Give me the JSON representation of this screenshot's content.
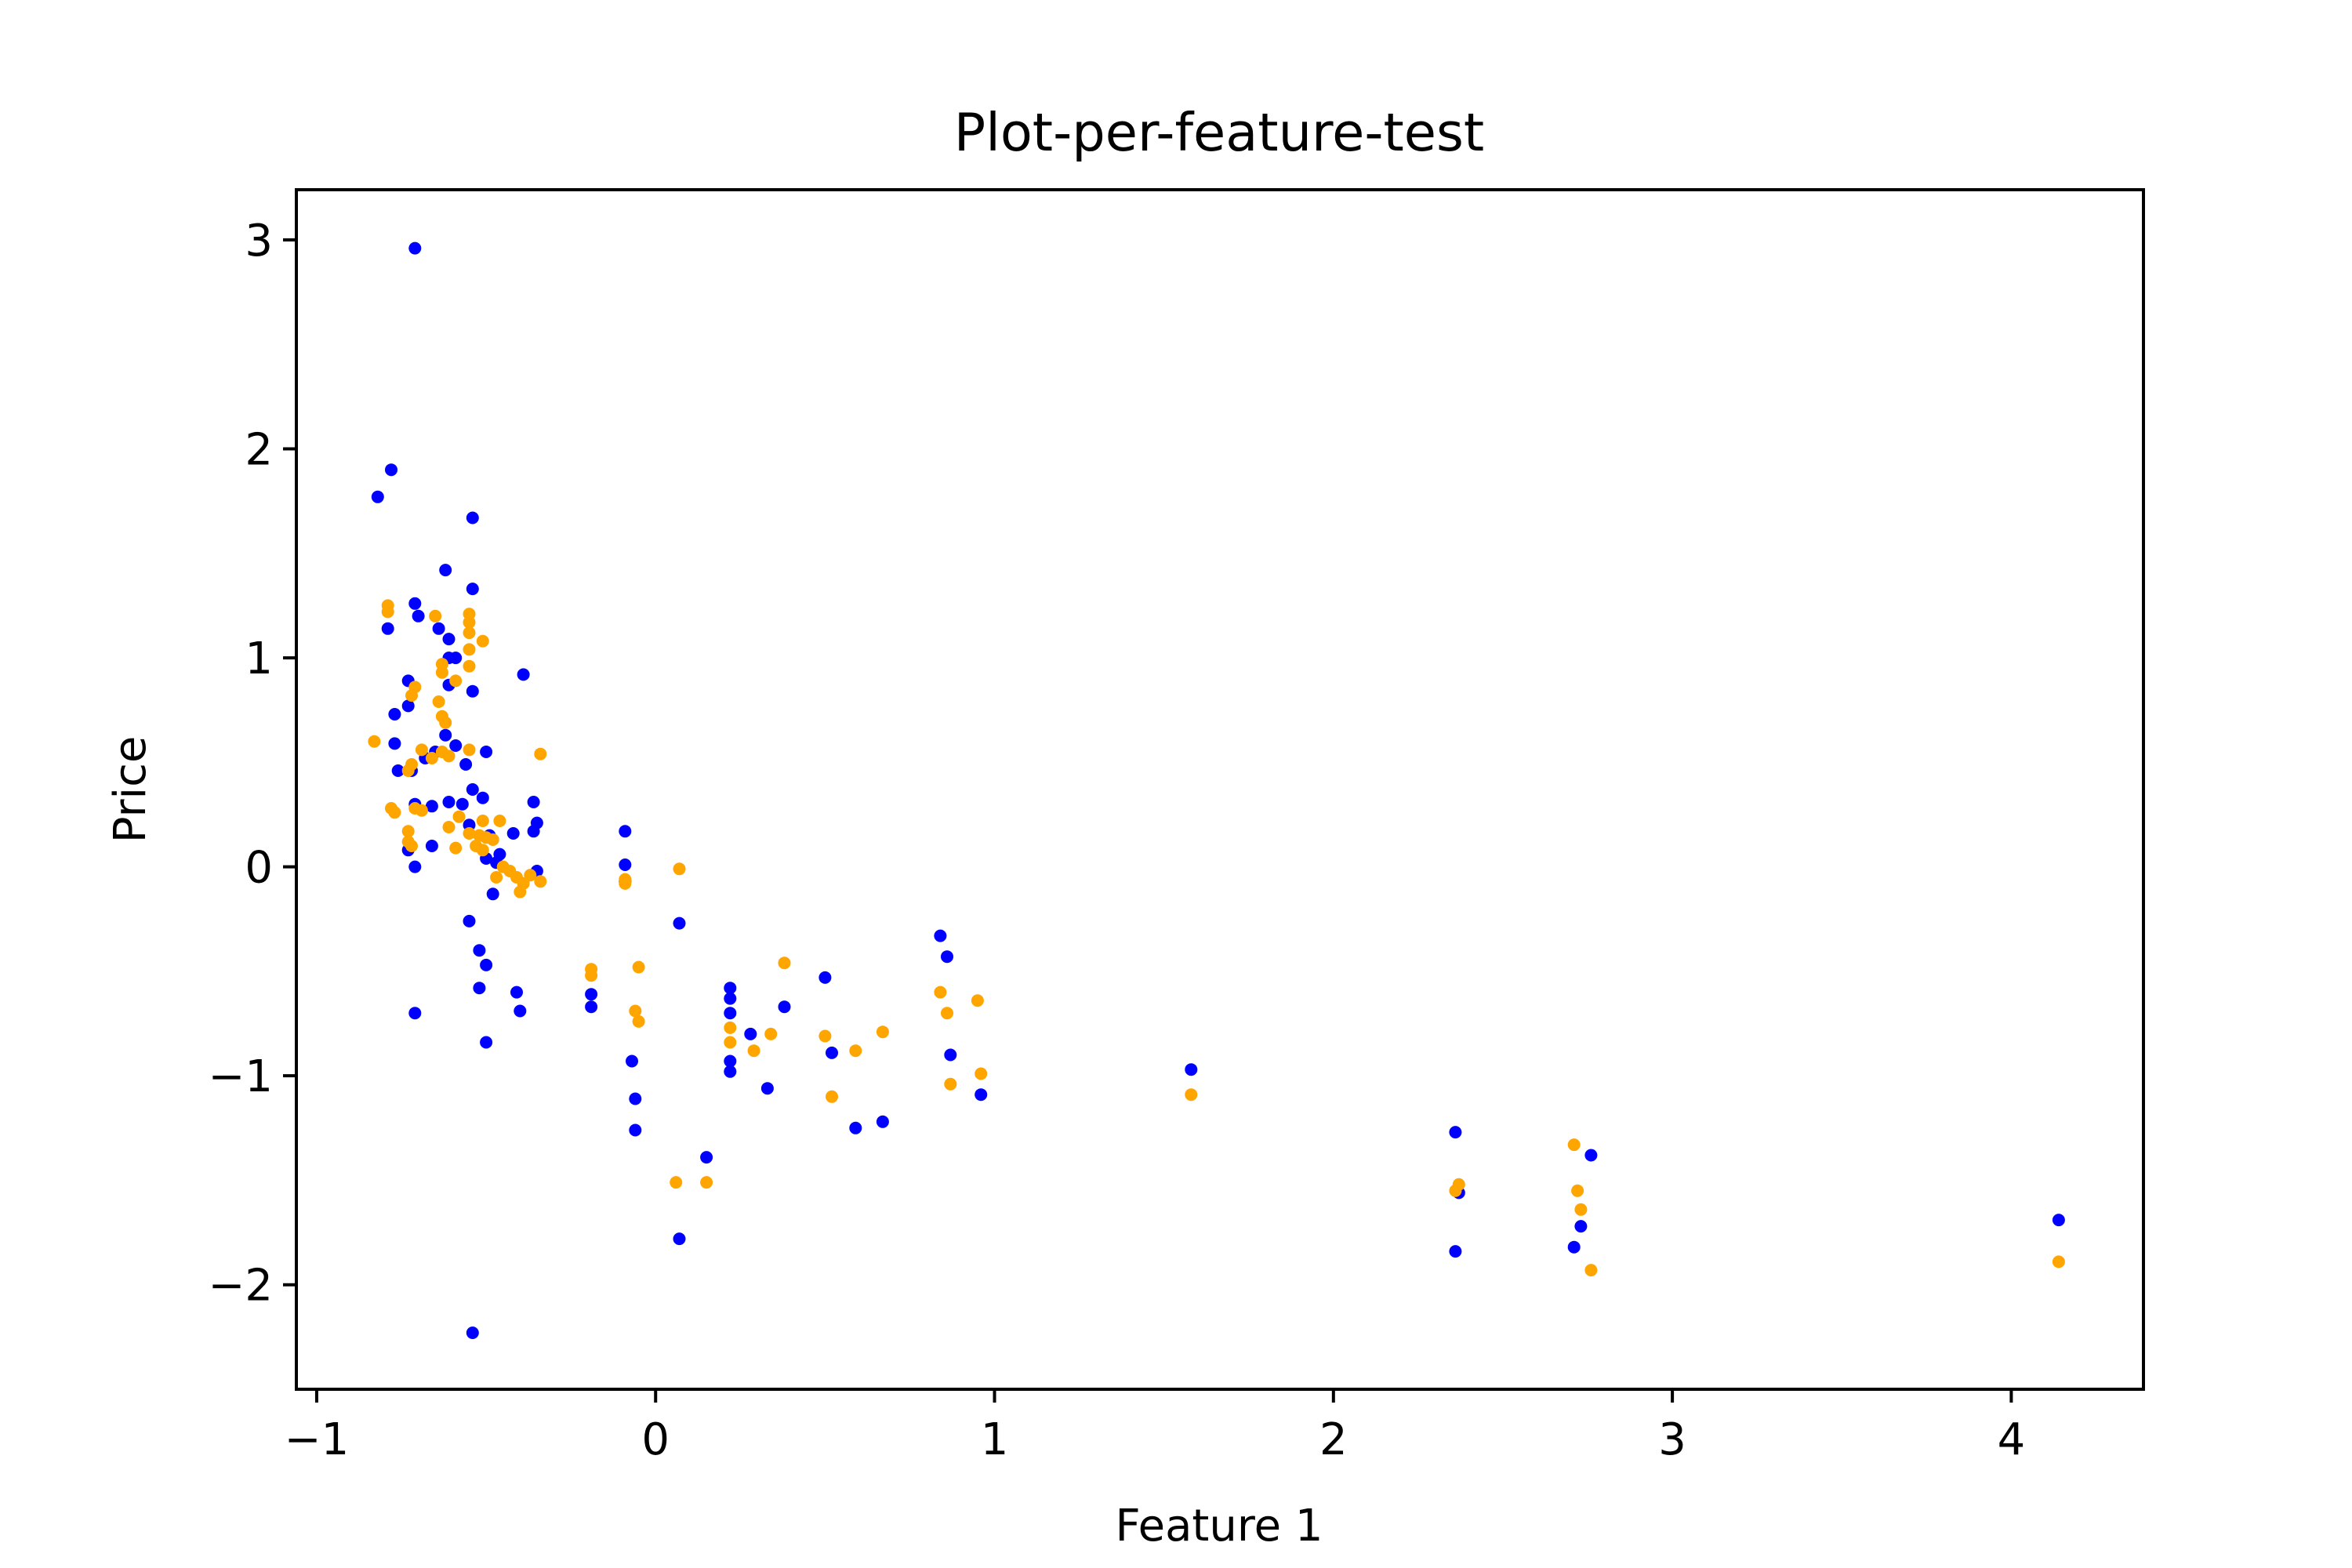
{
  "chart_data": {
    "type": "scatter",
    "title": "Plot-per-feature-test",
    "xlabel": "Feature 1",
    "ylabel": "Price",
    "xlim": [
      -1.06,
      4.39
    ],
    "ylim": [
      -2.5,
      3.24
    ],
    "xticks": [
      -1,
      0,
      1,
      2,
      3,
      4
    ],
    "xtick_labels": [
      "−1",
      "0",
      "1",
      "2",
      "3",
      "4"
    ],
    "yticks": [
      -2,
      -1,
      0,
      1,
      2,
      3
    ],
    "ytick_labels": [
      "−2",
      "−1",
      "0",
      "1",
      "2",
      "3"
    ],
    "grid": false,
    "legend": "none",
    "series": [
      {
        "color": "#0000ff",
        "points": [
          [
            -0.71,
            2.96
          ],
          [
            -0.78,
            1.9
          ],
          [
            -0.82,
            1.77
          ],
          [
            -0.54,
            1.67
          ],
          [
            -0.62,
            1.42
          ],
          [
            -0.54,
            1.33
          ],
          [
            -0.71,
            1.26
          ],
          [
            -0.7,
            1.2
          ],
          [
            -0.79,
            1.14
          ],
          [
            -0.64,
            1.14
          ],
          [
            -0.61,
            1.09
          ],
          [
            -0.61,
            1.0
          ],
          [
            -0.59,
            1.0
          ],
          [
            -0.39,
            0.92
          ],
          [
            -0.73,
            0.89
          ],
          [
            -0.61,
            0.87
          ],
          [
            -0.54,
            0.84
          ],
          [
            -0.73,
            0.77
          ],
          [
            -0.77,
            0.73
          ],
          [
            -0.62,
            0.63
          ],
          [
            -0.59,
            0.58
          ],
          [
            -0.77,
            0.59
          ],
          [
            -0.65,
            0.55
          ],
          [
            -0.5,
            0.55
          ],
          [
            -0.68,
            0.52
          ],
          [
            -0.56,
            0.49
          ],
          [
            -0.76,
            0.46
          ],
          [
            -0.72,
            0.46
          ],
          [
            -0.54,
            0.37
          ],
          [
            -0.36,
            0.31
          ],
          [
            -0.61,
            0.31
          ],
          [
            -0.71,
            0.3
          ],
          [
            -0.66,
            0.29
          ],
          [
            -0.57,
            0.3
          ],
          [
            -0.51,
            0.33
          ],
          [
            -0.35,
            0.21
          ],
          [
            -0.55,
            0.2
          ],
          [
            -0.36,
            0.17
          ],
          [
            -0.42,
            0.16
          ],
          [
            -0.49,
            0.15
          ],
          [
            -0.66,
            0.1
          ],
          [
            -0.73,
            0.08
          ],
          [
            -0.46,
            0.06
          ],
          [
            -0.5,
            0.04
          ],
          [
            -0.47,
            0.02
          ],
          [
            -0.71,
            0.0
          ],
          [
            -0.35,
            -0.02
          ],
          [
            -0.48,
            -0.13
          ],
          [
            -0.09,
            0.17
          ],
          [
            -0.09,
            0.01
          ],
          [
            -0.09,
            -0.07
          ],
          [
            0.07,
            -0.27
          ],
          [
            -0.55,
            -0.26
          ],
          [
            -0.52,
            -0.4
          ],
          [
            -0.5,
            -0.47
          ],
          [
            -0.71,
            -0.7
          ],
          [
            -0.52,
            -0.58
          ],
          [
            -0.41,
            -0.6
          ],
          [
            -0.4,
            -0.69
          ],
          [
            -0.5,
            -0.84
          ],
          [
            -0.19,
            -0.61
          ],
          [
            -0.19,
            -0.67
          ],
          [
            -0.07,
            -0.93
          ],
          [
            -0.06,
            -1.11
          ],
          [
            -0.06,
            -1.26
          ],
          [
            0.07,
            -1.78
          ],
          [
            0.15,
            -1.39
          ],
          [
            -0.54,
            -2.23
          ],
          [
            0.22,
            -0.58
          ],
          [
            0.22,
            -0.63
          ],
          [
            0.22,
            -0.7
          ],
          [
            0.22,
            -0.93
          ],
          [
            0.22,
            -0.98
          ],
          [
            0.28,
            -0.8
          ],
          [
            0.33,
            -1.06
          ],
          [
            0.38,
            -0.67
          ],
          [
            0.5,
            -0.53
          ],
          [
            0.52,
            -0.89
          ],
          [
            0.59,
            -1.25
          ],
          [
            0.67,
            -1.22
          ],
          [
            0.84,
            -0.33
          ],
          [
            0.86,
            -0.43
          ],
          [
            0.87,
            -0.9
          ],
          [
            0.96,
            -1.09
          ],
          [
            1.58,
            -0.97
          ],
          [
            2.36,
            -1.27
          ],
          [
            2.37,
            -1.56
          ],
          [
            2.36,
            -1.84
          ],
          [
            2.73,
            -1.72
          ],
          [
            2.71,
            -1.82
          ],
          [
            2.76,
            -1.38
          ],
          [
            4.14,
            -1.69
          ]
        ]
      },
      {
        "color": "#ffa500",
        "points": [
          [
            -0.79,
            1.25
          ],
          [
            -0.79,
            1.22
          ],
          [
            -0.65,
            1.2
          ],
          [
            -0.55,
            1.21
          ],
          [
            -0.55,
            1.17
          ],
          [
            -0.55,
            1.12
          ],
          [
            -0.51,
            1.08
          ],
          [
            -0.55,
            1.04
          ],
          [
            -0.63,
            0.97
          ],
          [
            -0.55,
            0.96
          ],
          [
            -0.63,
            0.93
          ],
          [
            -0.59,
            0.89
          ],
          [
            -0.71,
            0.86
          ],
          [
            -0.72,
            0.82
          ],
          [
            -0.64,
            0.79
          ],
          [
            -0.63,
            0.72
          ],
          [
            -0.62,
            0.69
          ],
          [
            -0.83,
            0.6
          ],
          [
            -0.69,
            0.56
          ],
          [
            -0.55,
            0.56
          ],
          [
            -0.63,
            0.55
          ],
          [
            -0.61,
            0.53
          ],
          [
            -0.66,
            0.52
          ],
          [
            -0.34,
            0.54
          ],
          [
            -0.72,
            0.49
          ],
          [
            -0.73,
            0.46
          ],
          [
            -0.78,
            0.28
          ],
          [
            -0.77,
            0.26
          ],
          [
            -0.71,
            0.28
          ],
          [
            -0.69,
            0.27
          ],
          [
            -0.58,
            0.24
          ],
          [
            -0.51,
            0.22
          ],
          [
            -0.46,
            0.22
          ],
          [
            -0.61,
            0.19
          ],
          [
            -0.73,
            0.17
          ],
          [
            -0.55,
            0.16
          ],
          [
            -0.52,
            0.15
          ],
          [
            -0.5,
            0.14
          ],
          [
            -0.48,
            0.13
          ],
          [
            -0.73,
            0.12
          ],
          [
            -0.72,
            0.1
          ],
          [
            -0.59,
            0.09
          ],
          [
            -0.53,
            0.1
          ],
          [
            -0.51,
            0.08
          ],
          [
            -0.45,
            0.0
          ],
          [
            -0.43,
            -0.02
          ],
          [
            -0.41,
            -0.05
          ],
          [
            -0.39,
            -0.08
          ],
          [
            -0.4,
            -0.12
          ],
          [
            -0.37,
            -0.04
          ],
          [
            -0.47,
            -0.05
          ],
          [
            -0.34,
            -0.07
          ],
          [
            0.07,
            -0.01
          ],
          [
            -0.09,
            -0.06
          ],
          [
            -0.09,
            -0.08
          ],
          [
            -0.19,
            -0.49
          ],
          [
            -0.19,
            -0.52
          ],
          [
            -0.05,
            -0.48
          ],
          [
            -0.06,
            -0.69
          ],
          [
            -0.05,
            -0.74
          ],
          [
            0.06,
            -1.51
          ],
          [
            0.15,
            -1.51
          ],
          [
            0.22,
            -0.77
          ],
          [
            0.22,
            -0.84
          ],
          [
            0.29,
            -0.88
          ],
          [
            0.34,
            -0.8
          ],
          [
            0.38,
            -0.46
          ],
          [
            0.5,
            -0.81
          ],
          [
            0.52,
            -1.1
          ],
          [
            0.59,
            -0.88
          ],
          [
            0.67,
            -0.79
          ],
          [
            0.84,
            -0.6
          ],
          [
            0.86,
            -0.7
          ],
          [
            0.87,
            -1.04
          ],
          [
            0.95,
            -0.64
          ],
          [
            0.96,
            -0.99
          ],
          [
            1.58,
            -1.09
          ],
          [
            2.37,
            -1.52
          ],
          [
            2.36,
            -1.55
          ],
          [
            2.71,
            -1.33
          ],
          [
            2.72,
            -1.55
          ],
          [
            2.73,
            -1.64
          ],
          [
            2.76,
            -1.93
          ],
          [
            4.14,
            -1.89
          ]
        ]
      }
    ]
  }
}
